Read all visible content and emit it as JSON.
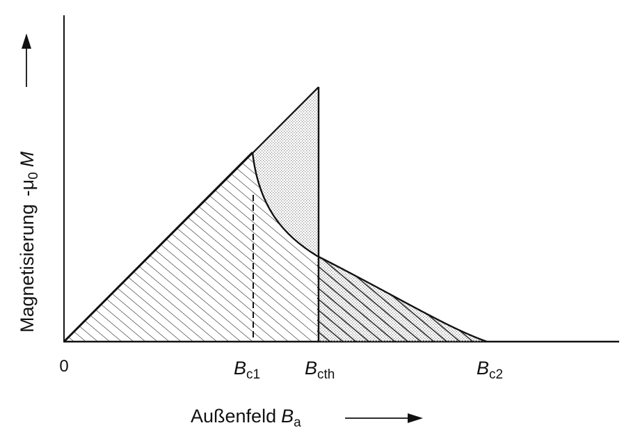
{
  "figure": {
    "x_axis": {
      "label_main": "Außenfeld",
      "label_sym": "B",
      "label_sub": "a",
      "origin_label": "0"
    },
    "y_axis": {
      "label_main": "Magnetisierung",
      "label_minus": "-",
      "label_mu": "μ",
      "label_mu_sub": "0",
      "label_sym": "M"
    },
    "ticks": [
      {
        "sym": "B",
        "sub": "c1"
      },
      {
        "sym": "B",
        "sub": "cth"
      },
      {
        "sym": "B",
        "sub": "c2"
      }
    ],
    "colors": {
      "ink": "#111111",
      "stipple": "#9a9a9a",
      "background": "#ffffff"
    }
  }
}
